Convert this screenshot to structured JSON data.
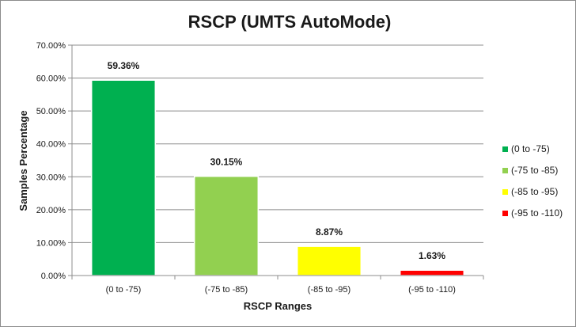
{
  "chart_data": {
    "type": "bar",
    "title": "RSCP (UMTS AutoMode)",
    "xlabel": "RSCP Ranges",
    "ylabel": "Samples Percentage",
    "ylim": [
      0,
      70
    ],
    "yticks": [
      "0.00%",
      "10.00%",
      "20.00%",
      "30.00%",
      "40.00%",
      "50.00%",
      "60.00%",
      "70.00%"
    ],
    "categories": [
      "(0 to -75)",
      "(-75 to -85)",
      "(-85 to -95)",
      "(-95 to -110)"
    ],
    "values": [
      59.36,
      30.15,
      8.87,
      1.63
    ],
    "data_labels": [
      "59.36%",
      "30.15%",
      "8.87%",
      "1.63%"
    ],
    "colors": [
      "#00b050",
      "#92d050",
      "#ffff00",
      "#ff0000"
    ],
    "grid": true,
    "legend": {
      "position": "right",
      "entries": [
        "(0 to -75)",
        "(-75 to -85)",
        "(-85 to -95)",
        "(-95 to -110)"
      ]
    }
  }
}
